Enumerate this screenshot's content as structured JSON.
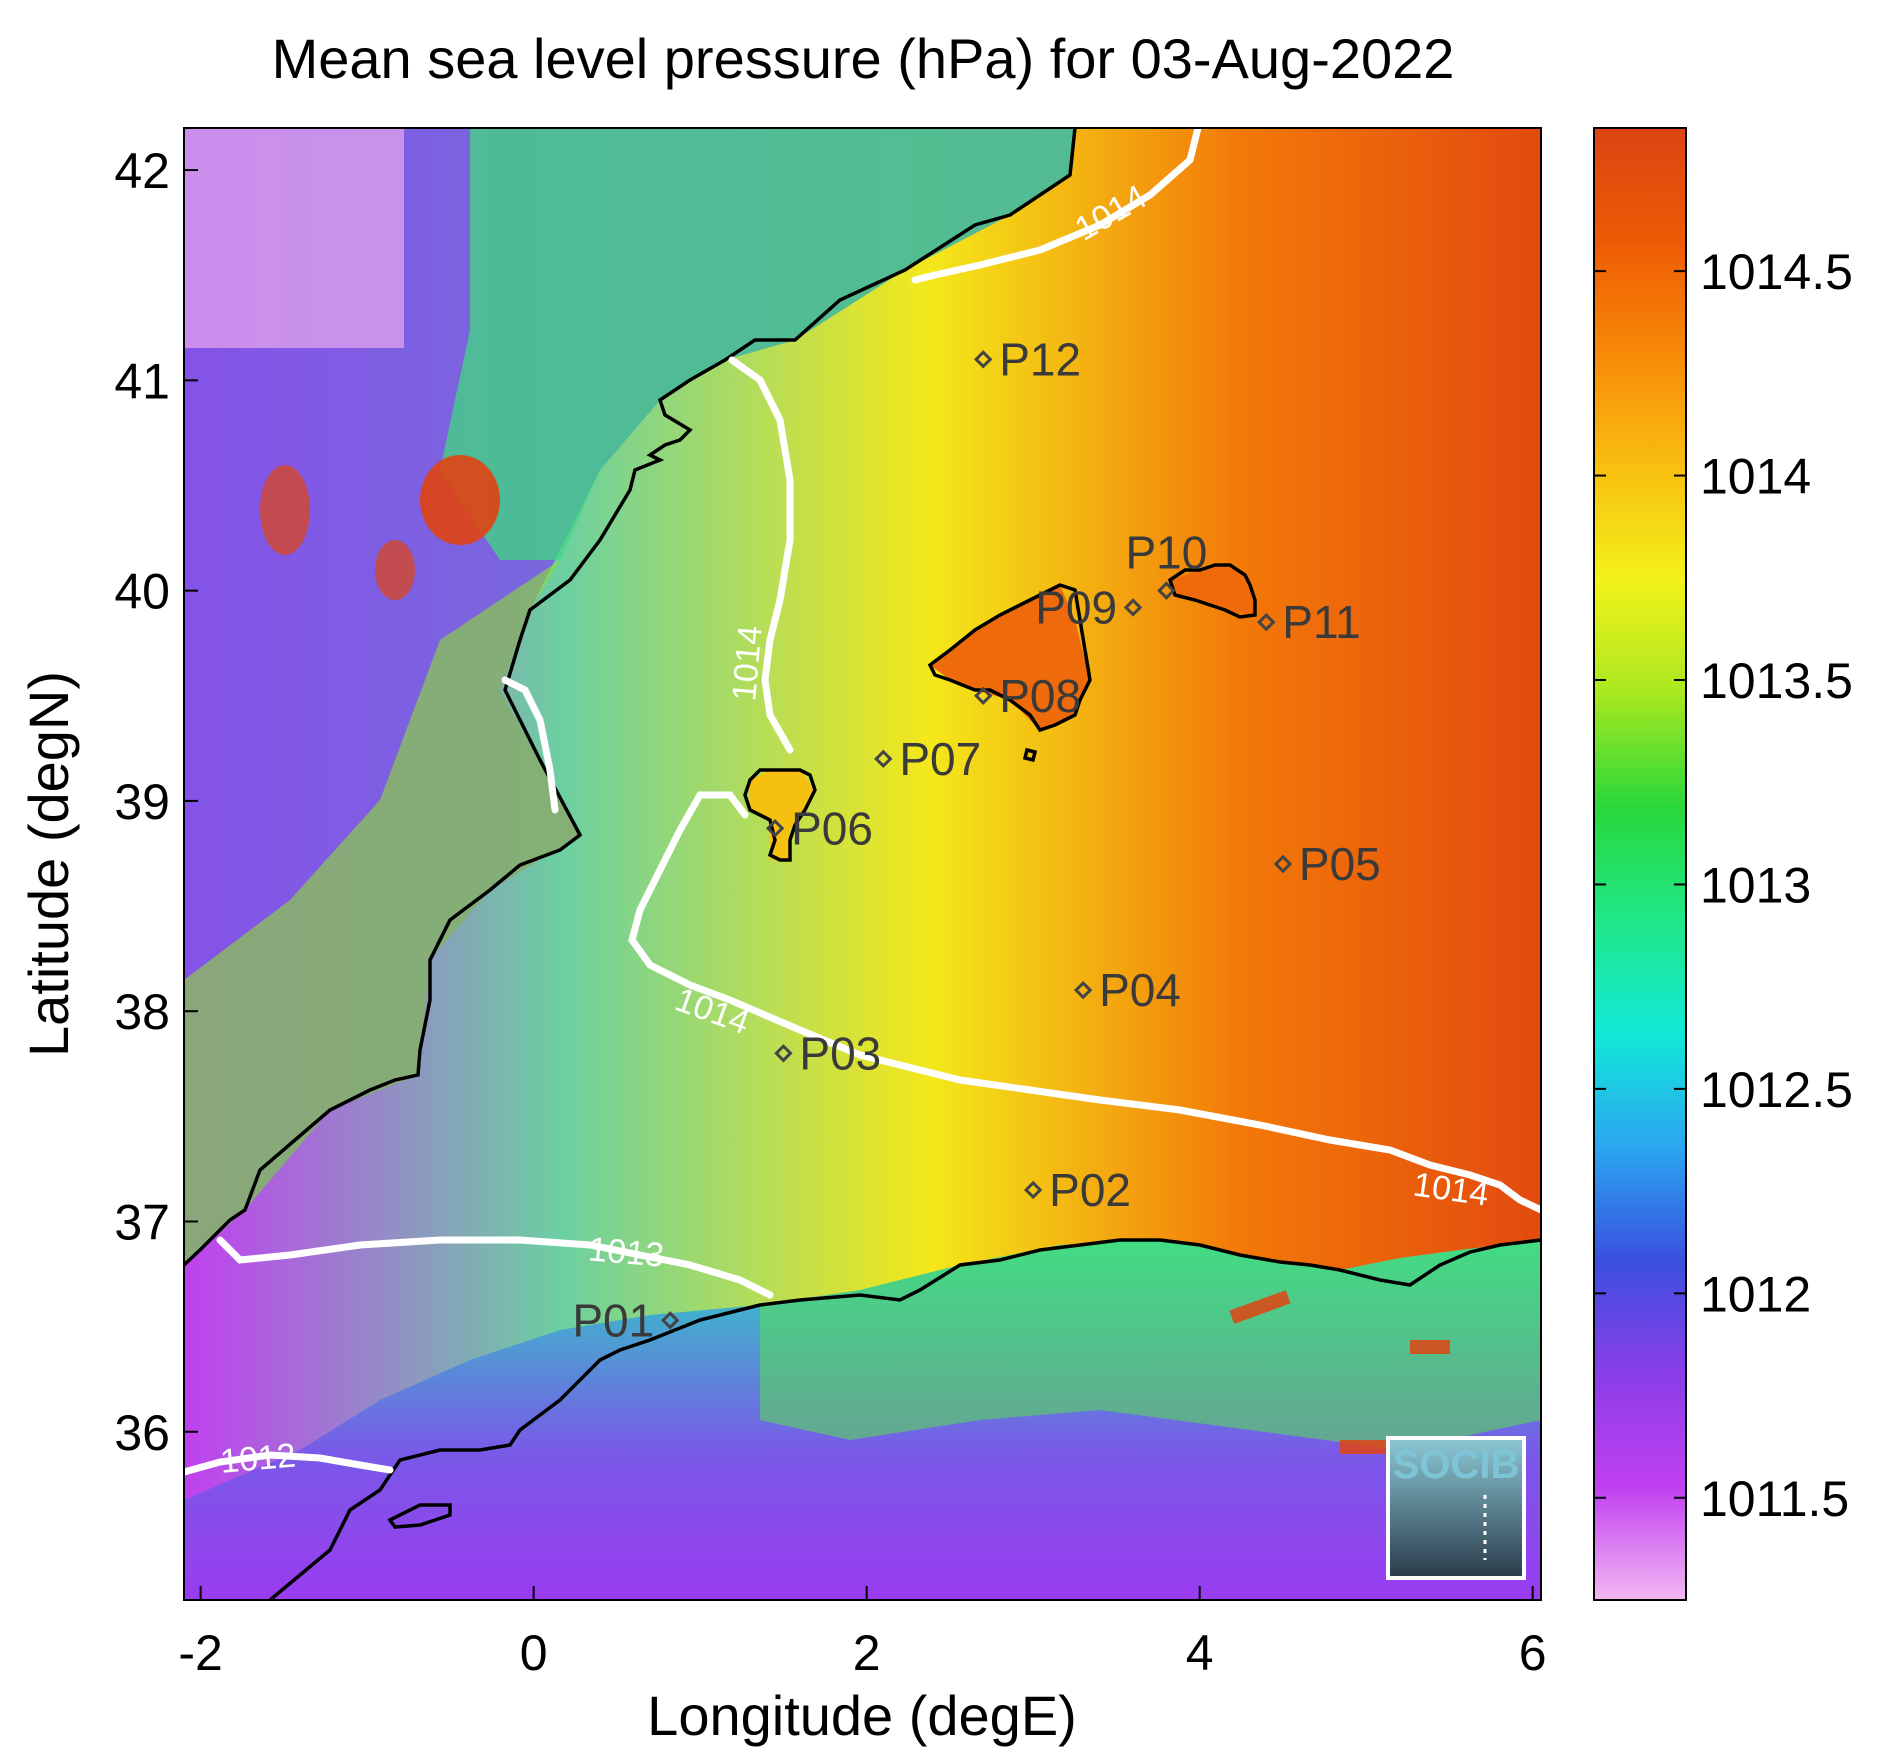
{
  "map": {
    "title": "Mean sea level pressure (hPa) for 03-Aug-2022",
    "xlabel": "Longitude (degE)",
    "ylabel": "Latitude (degN)",
    "xlim": [
      -2.1,
      6.05
    ],
    "ylim": [
      35.2,
      42.2
    ],
    "x_ticks": [
      {
        "value": -2,
        "label": "-2"
      },
      {
        "value": 0,
        "label": "0"
      },
      {
        "value": 2,
        "label": "2"
      },
      {
        "value": 4,
        "label": "4"
      },
      {
        "value": 6,
        "label": "6"
      }
    ],
    "y_ticks": [
      {
        "value": 36,
        "label": "36"
      },
      {
        "value": 37,
        "label": "37"
      },
      {
        "value": 38,
        "label": "38"
      },
      {
        "value": 39,
        "label": "39"
      },
      {
        "value": 40,
        "label": "40"
      },
      {
        "value": 41,
        "label": "41"
      },
      {
        "value": 42,
        "label": "42"
      }
    ],
    "stations": [
      {
        "name": "P01",
        "lon": 0.82,
        "lat": 36.53,
        "label_side": "left"
      },
      {
        "name": "P02",
        "lon": 3.0,
        "lat": 37.15,
        "label_side": "right"
      },
      {
        "name": "P03",
        "lon": 1.5,
        "lat": 37.8,
        "label_side": "right"
      },
      {
        "name": "P04",
        "lon": 3.3,
        "lat": 38.1,
        "label_side": "right"
      },
      {
        "name": "P05",
        "lon": 4.5,
        "lat": 38.7,
        "label_side": "right"
      },
      {
        "name": "P06",
        "lon": 1.45,
        "lat": 38.87,
        "label_side": "right"
      },
      {
        "name": "P07",
        "lon": 2.1,
        "lat": 39.2,
        "label_side": "right"
      },
      {
        "name": "P08",
        "lon": 2.7,
        "lat": 39.5,
        "label_side": "right"
      },
      {
        "name": "P09",
        "lon": 3.6,
        "lat": 39.92,
        "label_side": "left"
      },
      {
        "name": "P10",
        "lon": 3.8,
        "lat": 40.0,
        "label_side": "above"
      },
      {
        "name": "P11",
        "lon": 4.4,
        "lat": 39.85,
        "label_side": "right"
      },
      {
        "name": "P12",
        "lon": 2.7,
        "lat": 41.1,
        "label_side": "right"
      }
    ],
    "contour_labels": [
      {
        "text": "1014",
        "lon": 3.5,
        "lat": 41.75,
        "angle": -30
      },
      {
        "text": "1014",
        "lon": 1.35,
        "lat": 39.65,
        "angle": -85
      },
      {
        "text": "1014",
        "lon": 1.05,
        "lat": 37.95,
        "angle": 20
      },
      {
        "text": "1014",
        "lon": 5.5,
        "lat": 37.1,
        "angle": 8
      },
      {
        "text": "1013",
        "lon": 0.55,
        "lat": 36.8,
        "angle": 5
      },
      {
        "text": "1012",
        "lon": -1.65,
        "lat": 35.82,
        "angle": -5
      }
    ],
    "logo": "SOCIB"
  },
  "colorbar": {
    "range": [
      1011.25,
      1014.85
    ],
    "ticks": [
      {
        "value": 1011.5,
        "label": "1011.5"
      },
      {
        "value": 1012,
        "label": "1012"
      },
      {
        "value": 1012.5,
        "label": "1012.5"
      },
      {
        "value": 1013,
        "label": "1013"
      },
      {
        "value": 1013.5,
        "label": "1013.5"
      },
      {
        "value": 1014,
        "label": "1014"
      },
      {
        "value": 1014.5,
        "label": "1014.5"
      }
    ],
    "colors": [
      "#f2b8f2",
      "#c040f0",
      "#8a3ee8",
      "#3a50e0",
      "#2aa6f0",
      "#12e8d8",
      "#20e888",
      "#28d83a",
      "#a8e820",
      "#f2f21a",
      "#f8bf10",
      "#f88a08",
      "#ee5a04",
      "#dc4412"
    ]
  }
}
